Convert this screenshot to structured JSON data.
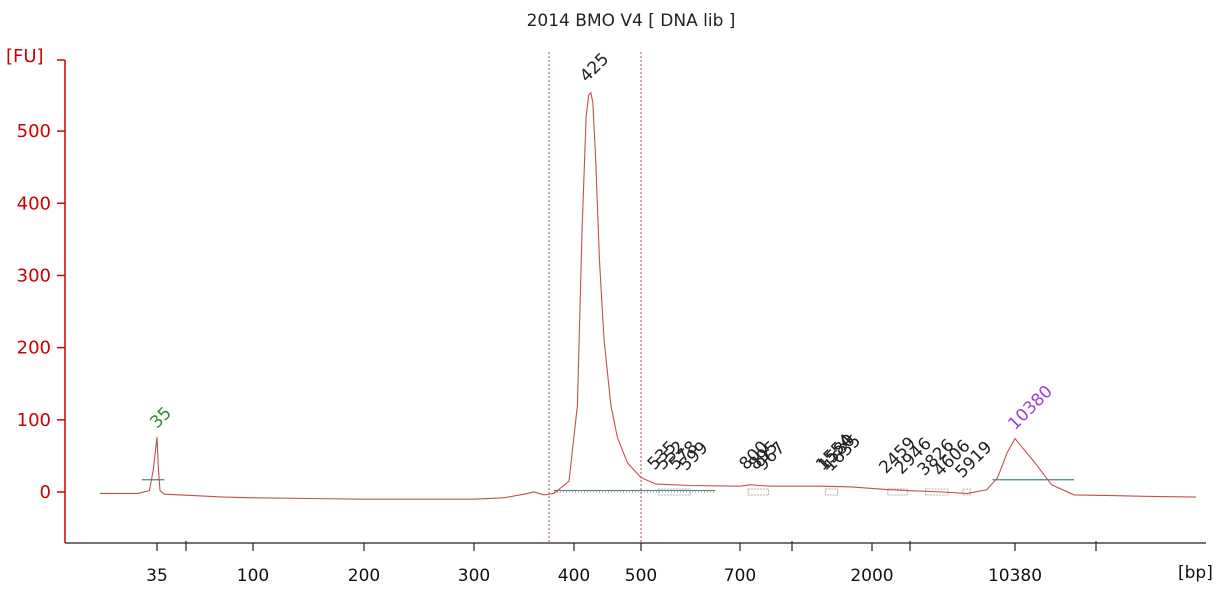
{
  "chart_data": {
    "type": "line",
    "title": "2014 BMO V4    [ DNA lib ]",
    "ylabel": "[FU]",
    "xlabel": "[bp]",
    "ylim": [
      -70,
      600
    ],
    "yticks": [
      0,
      100,
      200,
      300,
      400,
      500
    ],
    "xticks": [
      "35",
      "100",
      "200",
      "300",
      "400",
      "500",
      "700",
      "2000",
      "10380"
    ],
    "colors": {
      "trace": "#c0504d",
      "axis": "#cc0000",
      "baseline": "#3a8a8a",
      "marker_low": "#2e8b2e",
      "marker_high": "#9b3fd6"
    },
    "region": {
      "from_bp": 375,
      "to_bp": 500
    },
    "markers": [
      {
        "bp": 35,
        "label": "35",
        "fu": 76,
        "color": "#2e8b2e"
      },
      {
        "bp": 10380,
        "label": "10380",
        "fu": 74,
        "color": "#9b3fd6"
      }
    ],
    "peak_labels": [
      {
        "label": "425",
        "bp": 425,
        "fu": 553
      },
      {
        "label": "535",
        "bp": 535,
        "fu": 10
      },
      {
        "label": "552",
        "bp": 552,
        "fu": 10
      },
      {
        "label": "578",
        "bp": 578,
        "fu": 10
      },
      {
        "label": "599",
        "bp": 599,
        "fu": 9
      },
      {
        "label": "800",
        "bp": 800,
        "fu": 10
      },
      {
        "label": "895",
        "bp": 895,
        "fu": 10
      },
      {
        "label": "967",
        "bp": 967,
        "fu": 9
      },
      {
        "label": "1554",
        "bp": 1554,
        "fu": 9
      },
      {
        "label": "1580",
        "bp": 1580,
        "fu": 9
      },
      {
        "label": "1635",
        "bp": 1635,
        "fu": 8
      },
      {
        "label": "2459",
        "bp": 2459,
        "fu": 5
      },
      {
        "label": "2946",
        "bp": 2946,
        "fu": 4
      },
      {
        "label": "3826",
        "bp": 3826,
        "fu": 2
      },
      {
        "label": "4606",
        "bp": 4606,
        "fu": 1
      },
      {
        "label": "5919",
        "bp": 5919,
        "fu": -1
      }
    ],
    "series": [
      {
        "values": [
          [
            20,
            -2
          ],
          [
            30,
            -2
          ],
          [
            33,
            2
          ],
          [
            34,
            30
          ],
          [
            35,
            76
          ],
          [
            36,
            30
          ],
          [
            37,
            2
          ],
          [
            40,
            -3
          ],
          [
            60,
            -5
          ],
          [
            80,
            -7
          ],
          [
            100,
            -8
          ],
          [
            150,
            -9
          ],
          [
            200,
            -10
          ],
          [
            250,
            -10
          ],
          [
            300,
            -10
          ],
          [
            330,
            -8
          ],
          [
            350,
            -3
          ],
          [
            360,
            0
          ],
          [
            370,
            -4
          ],
          [
            380,
            -2
          ],
          [
            395,
            15
          ],
          [
            405,
            120
          ],
          [
            412,
            360
          ],
          [
            418,
            520
          ],
          [
            422,
            550
          ],
          [
            425,
            553
          ],
          [
            428,
            540
          ],
          [
            432,
            470
          ],
          [
            438,
            320
          ],
          [
            445,
            210
          ],
          [
            455,
            120
          ],
          [
            465,
            75
          ],
          [
            480,
            40
          ],
          [
            500,
            20
          ],
          [
            530,
            11
          ],
          [
            600,
            9
          ],
          [
            700,
            8
          ],
          [
            800,
            10
          ],
          [
            900,
            9
          ],
          [
            1000,
            8
          ],
          [
            1500,
            8
          ],
          [
            1800,
            7
          ],
          [
            2200,
            4
          ],
          [
            3000,
            2
          ],
          [
            4500,
            0
          ],
          [
            6000,
            -2
          ],
          [
            7500,
            3
          ],
          [
            8500,
            20
          ],
          [
            9500,
            55
          ],
          [
            10380,
            74
          ],
          [
            11500,
            40
          ],
          [
            12500,
            10
          ],
          [
            14000,
            -4
          ],
          [
            17000,
            -5
          ],
          [
            20000,
            -6
          ],
          [
            26000,
            -7
          ]
        ]
      }
    ]
  }
}
